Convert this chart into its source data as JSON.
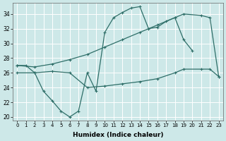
{
  "xlabel": "Humidex (Indice chaleur)",
  "xlim": [
    -0.5,
    23.5
  ],
  "ylim": [
    19.5,
    35.5
  ],
  "xticks": [
    0,
    1,
    2,
    3,
    4,
    5,
    6,
    7,
    8,
    9,
    10,
    11,
    12,
    13,
    14,
    15,
    16,
    17,
    18,
    19,
    20,
    21,
    22,
    23
  ],
  "yticks": [
    20,
    22,
    24,
    26,
    28,
    30,
    32,
    34
  ],
  "background_color": "#cde8e8",
  "grid_color": "#ffffff",
  "line_color": "#2e6e68",
  "line1_x": [
    0,
    1,
    2,
    3,
    4,
    5,
    6,
    7,
    8,
    9,
    10,
    11,
    12,
    13,
    14,
    15,
    16,
    17,
    18,
    19,
    20
  ],
  "line1_y": [
    27.0,
    27.0,
    26.0,
    23.5,
    22.2,
    20.8,
    20.0,
    20.8,
    26.0,
    23.5,
    31.5,
    33.5,
    34.2,
    34.8,
    35.0,
    32.0,
    32.2,
    33.0,
    33.5,
    30.5,
    29.0
  ],
  "line2_x": [
    0,
    2,
    4,
    6,
    8,
    10,
    12,
    14,
    16,
    18,
    19,
    21,
    22,
    23
  ],
  "line2_y": [
    27.0,
    26.8,
    27.2,
    27.8,
    28.5,
    29.5,
    30.5,
    31.5,
    32.5,
    33.5,
    34.0,
    33.8,
    33.5,
    25.5
  ],
  "line3_x": [
    0,
    2,
    4,
    6,
    8,
    10,
    12,
    14,
    16,
    18,
    19,
    21,
    22,
    23
  ],
  "line3_y": [
    26.0,
    26.0,
    26.2,
    26.0,
    24.0,
    24.2,
    24.5,
    24.8,
    25.2,
    26.0,
    26.5,
    26.5,
    26.5,
    25.5
  ]
}
